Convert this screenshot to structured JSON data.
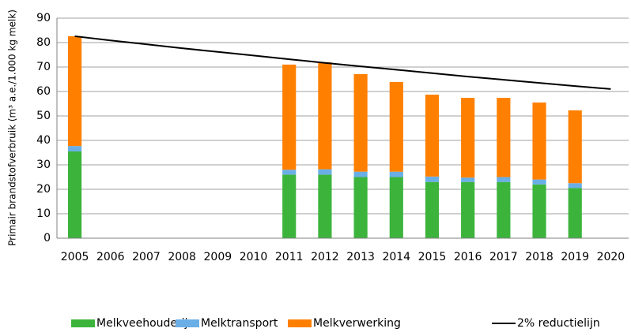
{
  "chart_data": {
    "type": "bar",
    "stacked": true,
    "y_label": "Primair brandstofverbruik (m³ a.e./1.000 kg melk)",
    "categories": [
      "2005",
      "2006",
      "2007",
      "2008",
      "2009",
      "2010",
      "2011",
      "2012",
      "2013",
      "2014",
      "2015",
      "2016",
      "2017",
      "2018",
      "2019",
      "2020"
    ],
    "series": [
      {
        "name": "Melkveehouderij",
        "color": "#3cb43c",
        "values": [
          35.5,
          null,
          null,
          null,
          null,
          null,
          26,
          26,
          25,
          25,
          23,
          23,
          23,
          22,
          20.5,
          null
        ]
      },
      {
        "name": "Melktransport",
        "color": "#6aaee6",
        "values": [
          2.2,
          null,
          null,
          null,
          null,
          null,
          2,
          2.2,
          2.2,
          2.2,
          2.2,
          1.8,
          2,
          2,
          2,
          null
        ]
      },
      {
        "name": "Melkverwerking",
        "color": "#ff8000",
        "values": [
          44.9,
          null,
          null,
          null,
          null,
          null,
          43,
          43.8,
          39.9,
          36.7,
          33.5,
          32.6,
          32.4,
          31.5,
          29.8,
          null
        ]
      },
      {
        "name": "2% reductielijn",
        "type": "line",
        "color": "#000000",
        "values": [
          82.6,
          80.9,
          79.3,
          77.7,
          76.2,
          74.7,
          73.2,
          71.7,
          70.3,
          68.9,
          67.5,
          66.1,
          64.8,
          63.5,
          62.2,
          61.0
        ]
      }
    ],
    "ylim": [
      0,
      90
    ],
    "yticks": [
      0,
      10,
      20,
      30,
      40,
      50,
      60,
      70,
      80,
      90
    ],
    "grid": true
  }
}
